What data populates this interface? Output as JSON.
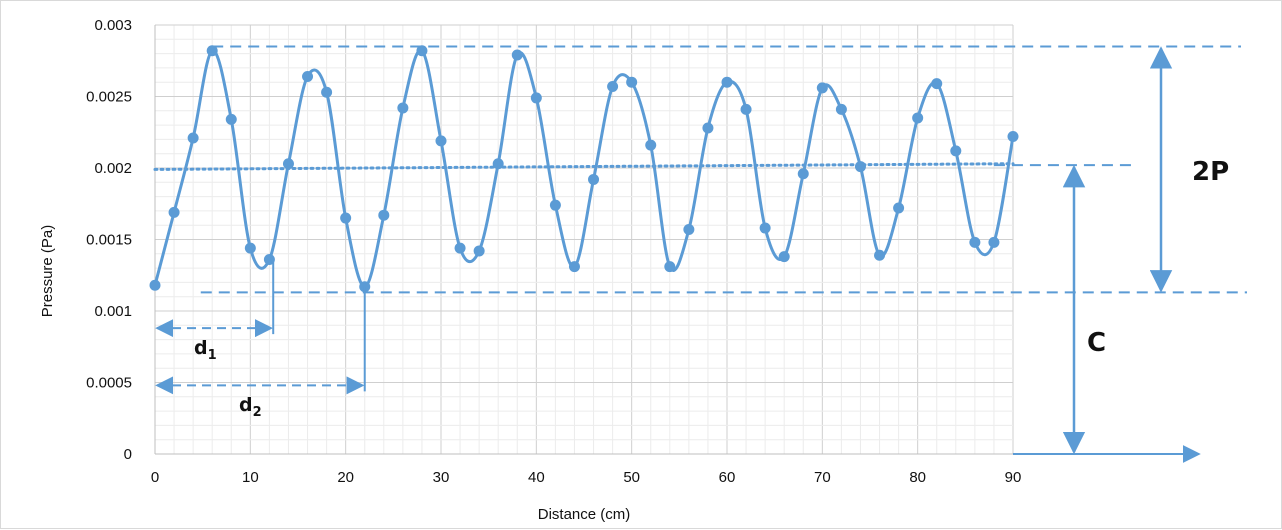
{
  "chart_data": {
    "type": "line",
    "xlabel": "Distance (cm)",
    "ylabel": "Pressure (Pa)",
    "xlim": [
      0,
      90
    ],
    "ylim": [
      0,
      0.003
    ],
    "x_ticks": [
      "0",
      "10",
      "20",
      "30",
      "40",
      "50",
      "60",
      "70",
      "80",
      "90"
    ],
    "y_ticks": [
      "0",
      "0.0005",
      "0.001",
      "0.0015",
      "0.002",
      "0.0025",
      "0.003"
    ],
    "grid": true,
    "series": [
      {
        "x": [
          0,
          2,
          4,
          6,
          8,
          10,
          12,
          14,
          16,
          18,
          20,
          22,
          24,
          26,
          28,
          30,
          32,
          34,
          36,
          38,
          40,
          42,
          44,
          46,
          48,
          50,
          52,
          54,
          56,
          58,
          60,
          62,
          64,
          66,
          68,
          70,
          72,
          74,
          76,
          78,
          80,
          82,
          84,
          86,
          88,
          90
        ],
        "y": [
          0.00118,
          0.00169,
          0.00221,
          0.00282,
          0.00234,
          0.00144,
          0.00136,
          0.00203,
          0.00264,
          0.00253,
          0.00165,
          0.00117,
          0.00167,
          0.00242,
          0.00282,
          0.00219,
          0.00144,
          0.00142,
          0.00203,
          0.00279,
          0.00249,
          0.00174,
          0.00131,
          0.00192,
          0.00257,
          0.0026,
          0.00216,
          0.00131,
          0.00157,
          0.00228,
          0.0026,
          0.00241,
          0.00158,
          0.00138,
          0.00196,
          0.00256,
          0.00241,
          0.00201,
          0.00139,
          0.00172,
          0.00235,
          0.00259,
          0.00212,
          0.00148,
          0.00148,
          0.00222
        ],
        "color": "#5b9bd5"
      }
    ],
    "mean_line": {
      "start": [
        0,
        0.00199
      ],
      "end": [
        90,
        0.00203
      ],
      "style": "dotted"
    },
    "reference_lines": {
      "max": 0.00285,
      "mean": 0.00202,
      "min": 0.00113
    },
    "annotations": [
      {
        "label": "2P",
        "from": 0.00113,
        "to": 0.00285
      },
      {
        "label": "C",
        "from": 0,
        "to": 0.00202
      },
      {
        "label": "d",
        "subscript": "1",
        "x_from": 0,
        "x_to": 12.4
      },
      {
        "label": "d",
        "subscript": "2",
        "x_from": 0,
        "x_to": 22
      }
    ]
  }
}
